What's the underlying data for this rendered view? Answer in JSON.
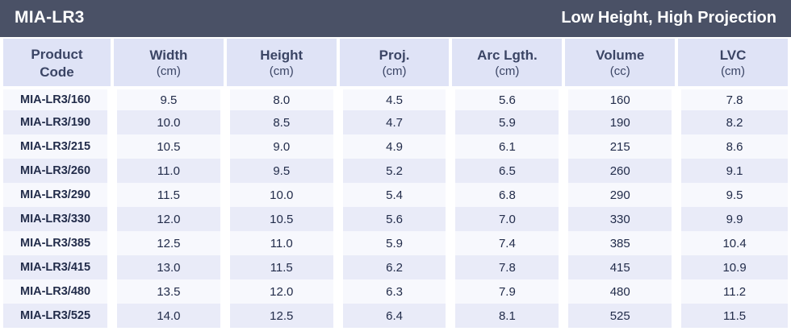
{
  "header_bar": {
    "title": "MIA-LR3",
    "subtitle": "Low Height, High Projection"
  },
  "colors": {
    "title_bar_bg": "#4a5166",
    "title_text": "#ffffff",
    "column_header_bg": "#dfe3f6",
    "row_light": "#f7f8fd",
    "row_shaded": "#e9ebf8",
    "text_dark": "#222c4a"
  },
  "table": {
    "columns": [
      {
        "line1": "Product",
        "line2": "Code"
      },
      {
        "line1": "Width",
        "line2": "(cm)"
      },
      {
        "line1": "Height",
        "line2": "(cm)"
      },
      {
        "line1": "Proj.",
        "line2": "(cm)"
      },
      {
        "line1": "Arc Lgth.",
        "line2": "(cm)"
      },
      {
        "line1": "Volume",
        "line2": "(cc)"
      },
      {
        "line1": "LVC",
        "line2": "(cm)"
      }
    ],
    "rows": [
      [
        "MIA-LR3/160",
        "9.5",
        "8.0",
        "4.5",
        "5.6",
        "160",
        "7.8"
      ],
      [
        "MIA-LR3/190",
        "10.0",
        "8.5",
        "4.7",
        "5.9",
        "190",
        "8.2"
      ],
      [
        "MIA-LR3/215",
        "10.5",
        "9.0",
        "4.9",
        "6.1",
        "215",
        "8.6"
      ],
      [
        "MIA-LR3/260",
        "11.0",
        "9.5",
        "5.2",
        "6.5",
        "260",
        "9.1"
      ],
      [
        "MIA-LR3/290",
        "11.5",
        "10.0",
        "5.4",
        "6.8",
        "290",
        "9.5"
      ],
      [
        "MIA-LR3/330",
        "12.0",
        "10.5",
        "5.6",
        "7.0",
        "330",
        "9.9"
      ],
      [
        "MIA-LR3/385",
        "12.5",
        "11.0",
        "5.9",
        "7.4",
        "385",
        "10.4"
      ],
      [
        "MIA-LR3/415",
        "13.0",
        "11.5",
        "6.2",
        "7.8",
        "415",
        "10.9"
      ],
      [
        "MIA-LR3/480",
        "13.5",
        "12.0",
        "6.3",
        "7.9",
        "480",
        "11.2"
      ],
      [
        "MIA-LR3/525",
        "14.0",
        "12.5",
        "6.4",
        "8.1",
        "525",
        "11.5"
      ]
    ]
  }
}
